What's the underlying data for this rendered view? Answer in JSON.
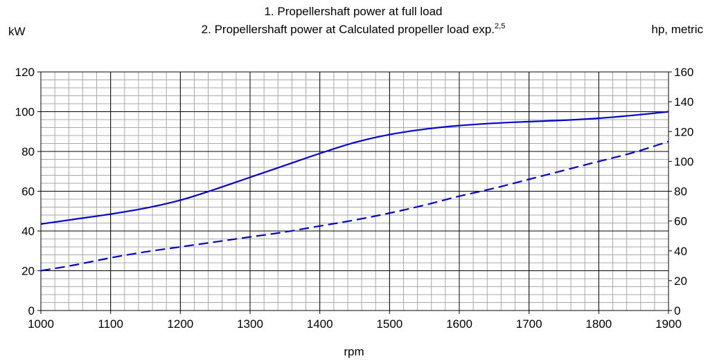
{
  "chart_data": {
    "type": "line",
    "title_line1": "1. Propellershaft power at full load",
    "title_line2_prefix": "2. Propellershaft power at Calculated propeller load exp.",
    "title_line2_superscript": "2,5",
    "ylabel_left": "kW",
    "ylabel_right": "hp, metric",
    "xlabel": "rpm",
    "xlim": [
      1000,
      1900
    ],
    "ylim_left": [
      0,
      120
    ],
    "ylim_right": [
      0,
      160
    ],
    "x_ticks": [
      "1000",
      "1100",
      "1200",
      "1300",
      "1400",
      "1500",
      "1600",
      "1700",
      "1800",
      "1900"
    ],
    "y_ticks_left": [
      "0",
      "20",
      "40",
      "60",
      "80",
      "100",
      "120"
    ],
    "y_ticks_right": [
      "0",
      "20",
      "40",
      "60",
      "80",
      "100",
      "120",
      "140",
      "160"
    ],
    "grid": true,
    "line_color": "#0000cc",
    "series": [
      {
        "style": "solid",
        "x": [
          1000,
          1050,
          1100,
          1150,
          1200,
          1250,
          1300,
          1350,
          1400,
          1450,
          1500,
          1550,
          1600,
          1650,
          1700,
          1750,
          1800,
          1850,
          1900
        ],
        "y": [
          43.5,
          46.0,
          48.5,
          51.5,
          55.5,
          61.0,
          67.0,
          73.0,
          79.0,
          84.5,
          88.5,
          91.2,
          93.0,
          94.2,
          95.0,
          95.7,
          96.7,
          98.2,
          100.0
        ]
      },
      {
        "style": "dashed",
        "x": [
          1000,
          1050,
          1100,
          1150,
          1200,
          1250,
          1300,
          1350,
          1400,
          1450,
          1500,
          1550,
          1600,
          1650,
          1700,
          1750,
          1800,
          1850,
          1900
        ],
        "y": [
          20.0,
          23.0,
          26.5,
          29.5,
          32.0,
          34.5,
          37.0,
          39.5,
          42.5,
          45.5,
          49.0,
          53.0,
          57.5,
          61.5,
          66.0,
          70.5,
          75.0,
          79.5,
          85.0
        ]
      }
    ]
  }
}
